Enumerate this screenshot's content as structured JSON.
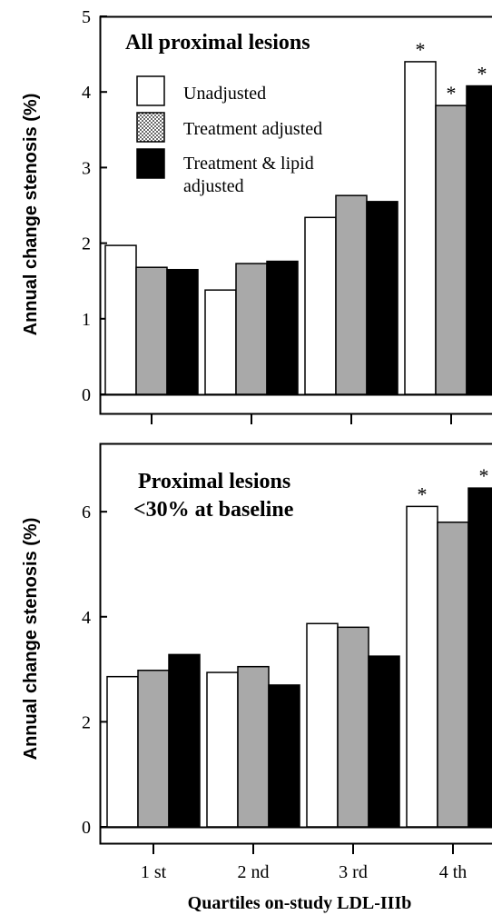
{
  "colors": {
    "unadjusted": "#ffffff",
    "treatment_adjusted": "#a9a9a9",
    "treatment_lipid_adjusted": "#000000",
    "axis": "#000000"
  },
  "shared": {
    "xlabel": "Quartiles on-study LDL-IIIb"
  },
  "chart_data": [
    {
      "type": "bar",
      "title": "All proximal lesions",
      "subtitle": "",
      "ylabel": "Annual change stenosis (%)",
      "xlabel": "",
      "ylim": [
        0,
        5
      ],
      "yticks": [
        "0",
        "1",
        "2",
        "3",
        "4",
        "5"
      ],
      "categories": [
        "1 st",
        "2 nd",
        "3 rd",
        "4 th"
      ],
      "show_category_labels": false,
      "legend": {
        "placement": "top-left",
        "entries": [
          {
            "label": "Unadjusted",
            "swatch": "white"
          },
          {
            "label": "Treatment adjusted",
            "swatch": "dotted"
          },
          {
            "label": "Treatment & lipid",
            "label2": "adjusted",
            "swatch": "black"
          }
        ]
      },
      "series": [
        {
          "name": "Unadjusted",
          "values": [
            1.97,
            1.38,
            2.34,
            4.4
          ],
          "significant": [
            false,
            false,
            false,
            true
          ]
        },
        {
          "name": "Treatment adjusted",
          "values": [
            1.68,
            1.73,
            2.63,
            3.82
          ],
          "significant": [
            false,
            false,
            false,
            true
          ]
        },
        {
          "name": "Treatment & lipid adjusted",
          "values": [
            1.65,
            1.76,
            2.55,
            4.08
          ],
          "significant": [
            false,
            false,
            false,
            true
          ]
        }
      ],
      "significance_marker": "*",
      "grid": false
    },
    {
      "type": "bar",
      "title": "Proximal lesions",
      "subtitle": "<30% at baseline",
      "ylabel": "Annual change stenosis (%)",
      "xlabel": "Quartiles on-study LDL-IIIb",
      "ylim": [
        0,
        7.3
      ],
      "yticks": [
        "0",
        "2",
        "4",
        "6"
      ],
      "ytick_values": [
        0,
        2,
        4,
        6
      ],
      "categories": [
        "1 st",
        "2 nd",
        "3 rd",
        "4 th"
      ],
      "show_category_labels": true,
      "series": [
        {
          "name": "Unadjusted",
          "values": [
            2.86,
            2.94,
            3.87,
            6.1
          ],
          "significant": [
            false,
            false,
            false,
            true
          ]
        },
        {
          "name": "Treatment adjusted",
          "values": [
            2.98,
            3.05,
            3.8,
            5.8
          ],
          "significant": [
            false,
            false,
            false,
            false
          ]
        },
        {
          "name": "Treatment & lipid adjusted",
          "values": [
            3.28,
            2.7,
            3.25,
            6.45
          ],
          "significant": [
            false,
            false,
            false,
            true
          ]
        }
      ],
      "significance_marker": "*",
      "grid": false
    }
  ]
}
